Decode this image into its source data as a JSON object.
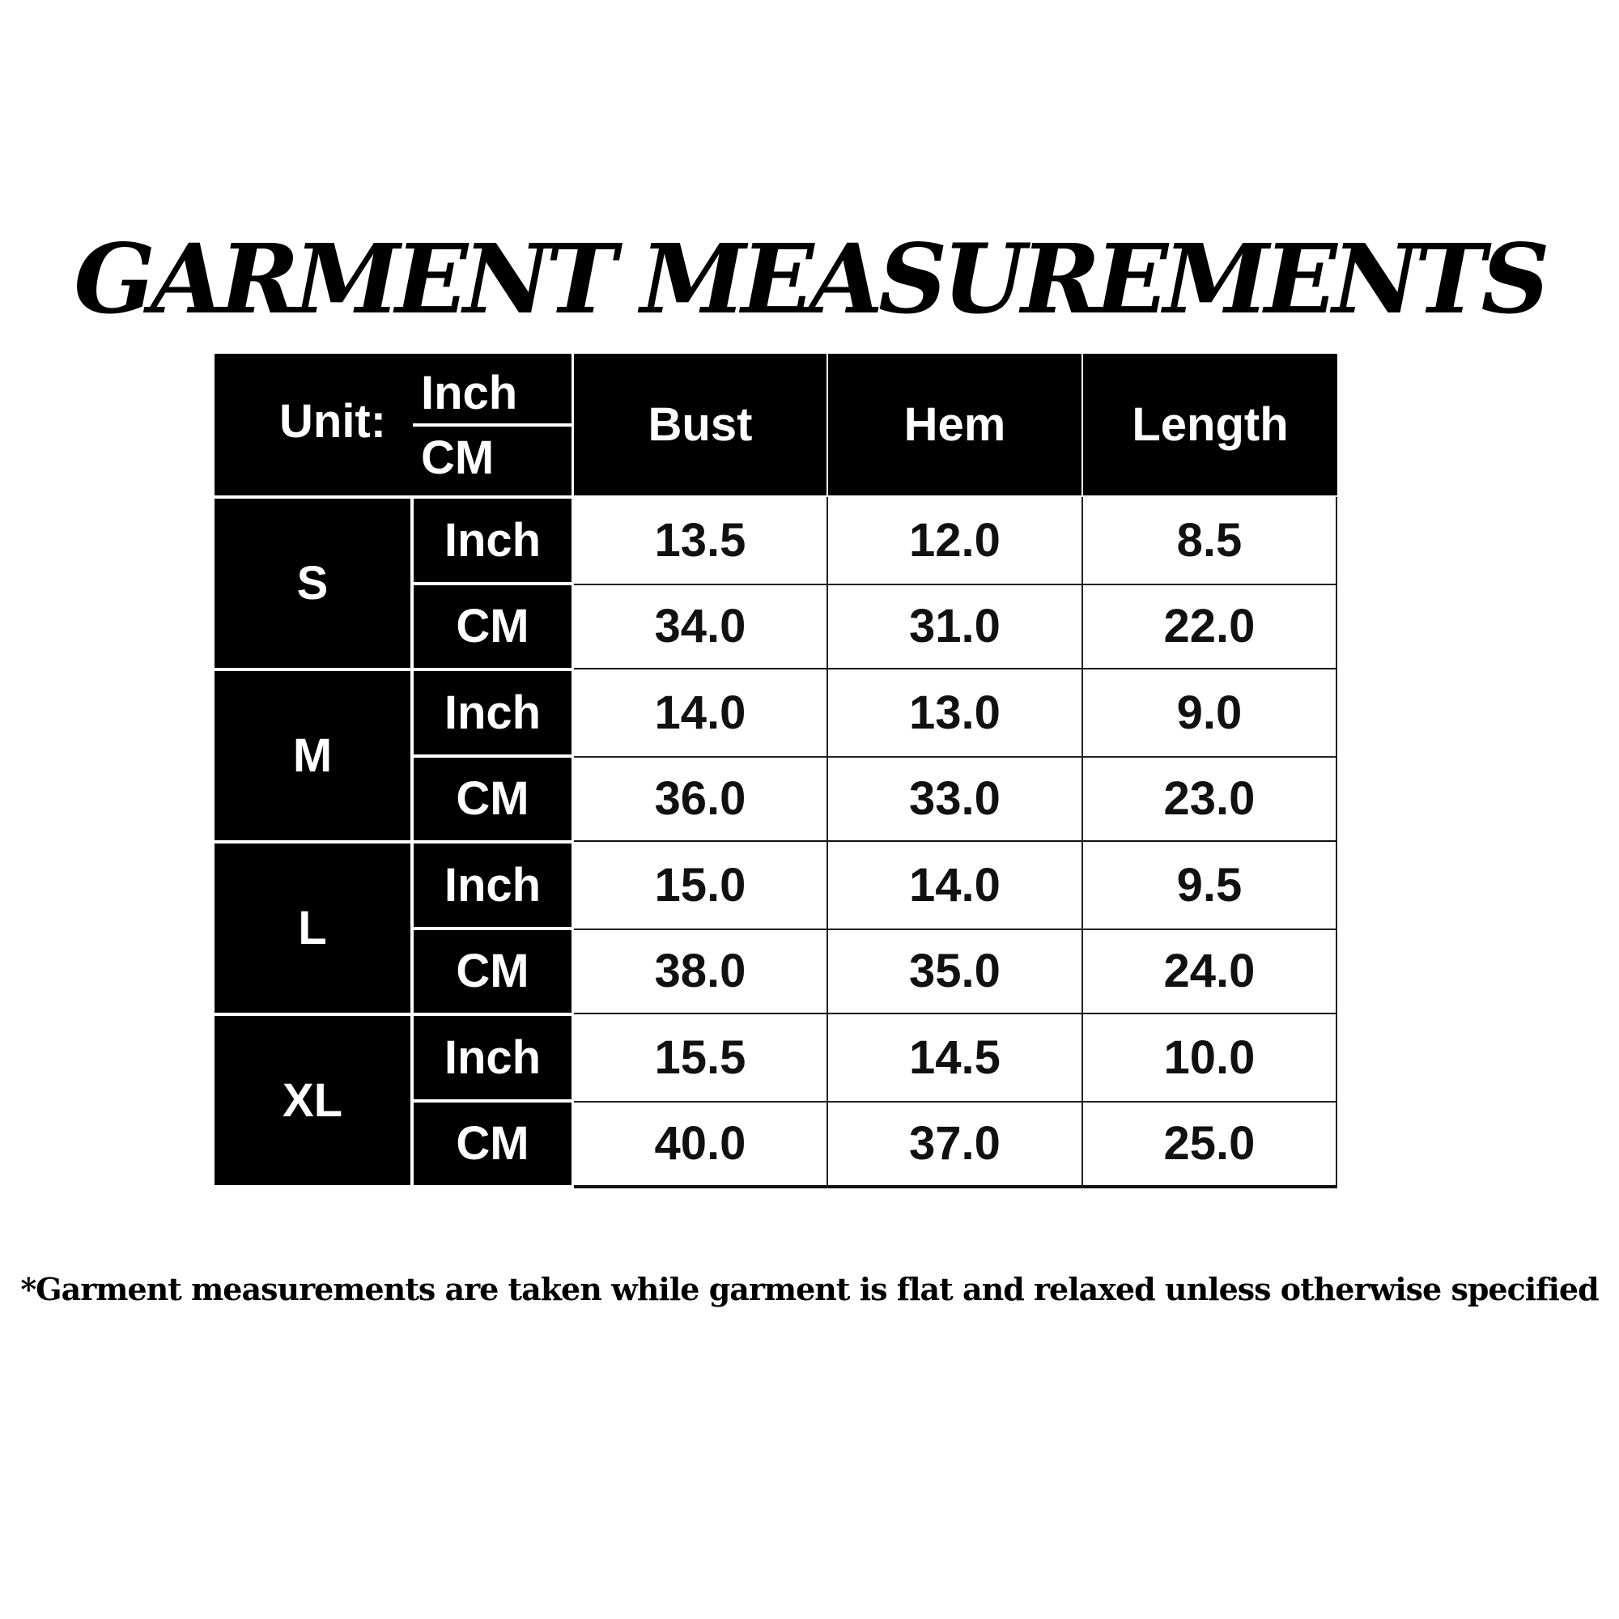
{
  "title": "GARMENT MEASUREMENTS",
  "table": {
    "unit_label": "Unit:",
    "unit_top": "Inch",
    "unit_bottom": "CM",
    "columns": [
      "Bust",
      "Hem",
      "Length"
    ],
    "rows": [
      {
        "size": "S",
        "inch": {
          "label": "Inch",
          "values": [
            "13.5",
            "12.0",
            "8.5"
          ]
        },
        "cm": {
          "label": "CM",
          "values": [
            "34.0",
            "31.0",
            "22.0"
          ]
        }
      },
      {
        "size": "M",
        "inch": {
          "label": "Inch",
          "values": [
            "14.0",
            "13.0",
            "9.0"
          ]
        },
        "cm": {
          "label": "CM",
          "values": [
            "36.0",
            "33.0",
            "23.0"
          ]
        }
      },
      {
        "size": "L",
        "inch": {
          "label": "Inch",
          "values": [
            "15.0",
            "14.0",
            "9.5"
          ]
        },
        "cm": {
          "label": "CM",
          "values": [
            "38.0",
            "35.0",
            "24.0"
          ]
        }
      },
      {
        "size": "XL",
        "inch": {
          "label": "Inch",
          "values": [
            "15.5",
            "14.5",
            "10.0"
          ]
        },
        "cm": {
          "label": "CM",
          "values": [
            "40.0",
            "37.0",
            "25.0"
          ]
        }
      }
    ]
  },
  "footnote": "*Garment measurements are taken while garment is flat and relaxed unless otherwise specified"
}
